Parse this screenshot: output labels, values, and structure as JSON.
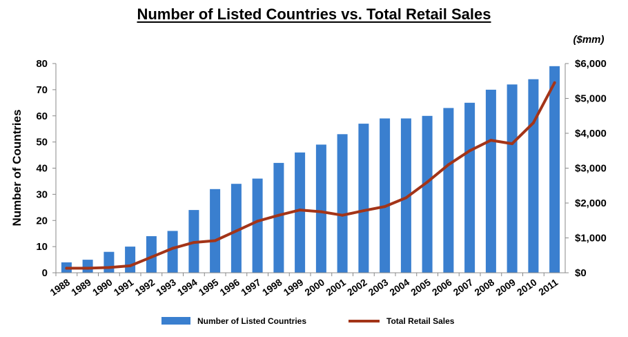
{
  "chart_data": {
    "type": "bar+line",
    "title": "Number of Listed Countries vs. Total Retail Sales",
    "categories": [
      "1988",
      "1989",
      "1990",
      "1991",
      "1992",
      "1993",
      "1994",
      "1995",
      "1996",
      "1997",
      "1998",
      "1999",
      "2000",
      "2001",
      "2002",
      "2003",
      "2004",
      "2005",
      "2006",
      "2007",
      "2008",
      "2009",
      "2010",
      "2011"
    ],
    "series": [
      {
        "name": "Number of Listed Countries",
        "type": "bar",
        "axis": "left",
        "color": "#3a7fcf",
        "values": [
          4,
          5,
          8,
          10,
          14,
          16,
          24,
          32,
          34,
          36,
          42,
          46,
          49,
          53,
          57,
          59,
          59,
          60,
          63,
          65,
          70,
          72,
          74,
          79
        ]
      },
      {
        "name": "Total Retail Sales",
        "type": "line",
        "axis": "right",
        "color": "#a33418",
        "values": [
          130,
          130,
          150,
          200,
          450,
          700,
          870,
          920,
          1200,
          1480,
          1650,
          1800,
          1750,
          1650,
          1780,
          1900,
          2150,
          2600,
          3100,
          3500,
          3800,
          3700,
          4300,
          5450
        ]
      }
    ],
    "ylabel": "Number of Countries",
    "ylim": [
      0,
      80
    ],
    "yticks": [
      "0",
      "10",
      "20",
      "30",
      "40",
      "50",
      "60",
      "70",
      "80"
    ],
    "y2unit": "($mm)",
    "y2lim": [
      0,
      6000
    ],
    "y2ticks": [
      "$0",
      "$1,000",
      "$2,000",
      "$3,000",
      "$4,000",
      "$5,000",
      "$6,000"
    ],
    "legend": "bottom",
    "grid": false
  }
}
